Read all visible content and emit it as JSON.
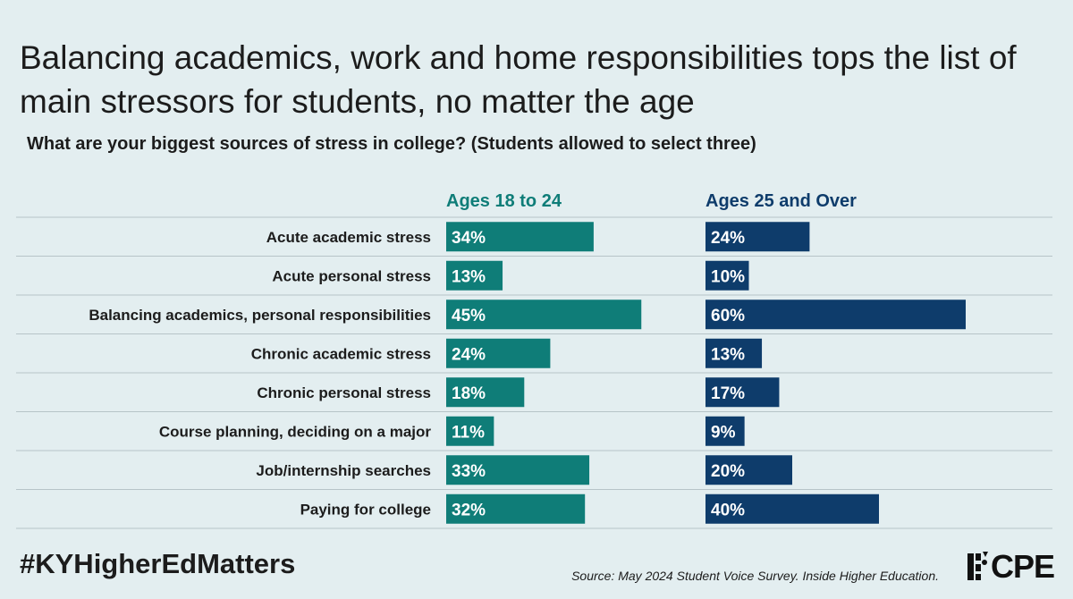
{
  "title": "Balancing academics, work and home responsibilities tops the list of main stressors for students, no matter the age",
  "subtitle": "What are your biggest sources of stress in college? (Students allowed to select three)",
  "footer": {
    "hashtag": "#KYHigherEdMatters",
    "source": "Source: May 2024 Student Voice Survey. Inside Higher Education.",
    "logo_text": "CPE"
  },
  "colors": {
    "teal": "#0f7d78",
    "navy": "#0e3c6b",
    "background": "#e3eef0",
    "row_line": "#b7c4c8"
  },
  "chart_data": {
    "type": "bar",
    "categories": [
      "Acute academic stress",
      "Acute personal stress",
      "Balancing academics, personal responsibilities",
      "Chronic academic stress",
      "Chronic personal stress",
      "Course planning, deciding on a major",
      "Job/internship searches",
      "Paying for college"
    ],
    "series": [
      {
        "name": "Ages 18 to 24",
        "values": [
          34,
          13,
          45,
          24,
          18,
          11,
          33,
          32
        ],
        "labels": [
          "34%",
          "13%",
          "45%",
          "24%",
          "18%",
          "11%",
          "33%",
          "32%"
        ],
        "color": "#0f7d78"
      },
      {
        "name": "Ages 25 and Over",
        "values": [
          24,
          10,
          60,
          13,
          17,
          9,
          20,
          40
        ],
        "labels": [
          "24%",
          "10%",
          "60%",
          "13%",
          "17%",
          "9%",
          "20%",
          "40%"
        ],
        "color": "#0e3c6b"
      }
    ],
    "units": "%",
    "legend": "column headers above each panel"
  }
}
